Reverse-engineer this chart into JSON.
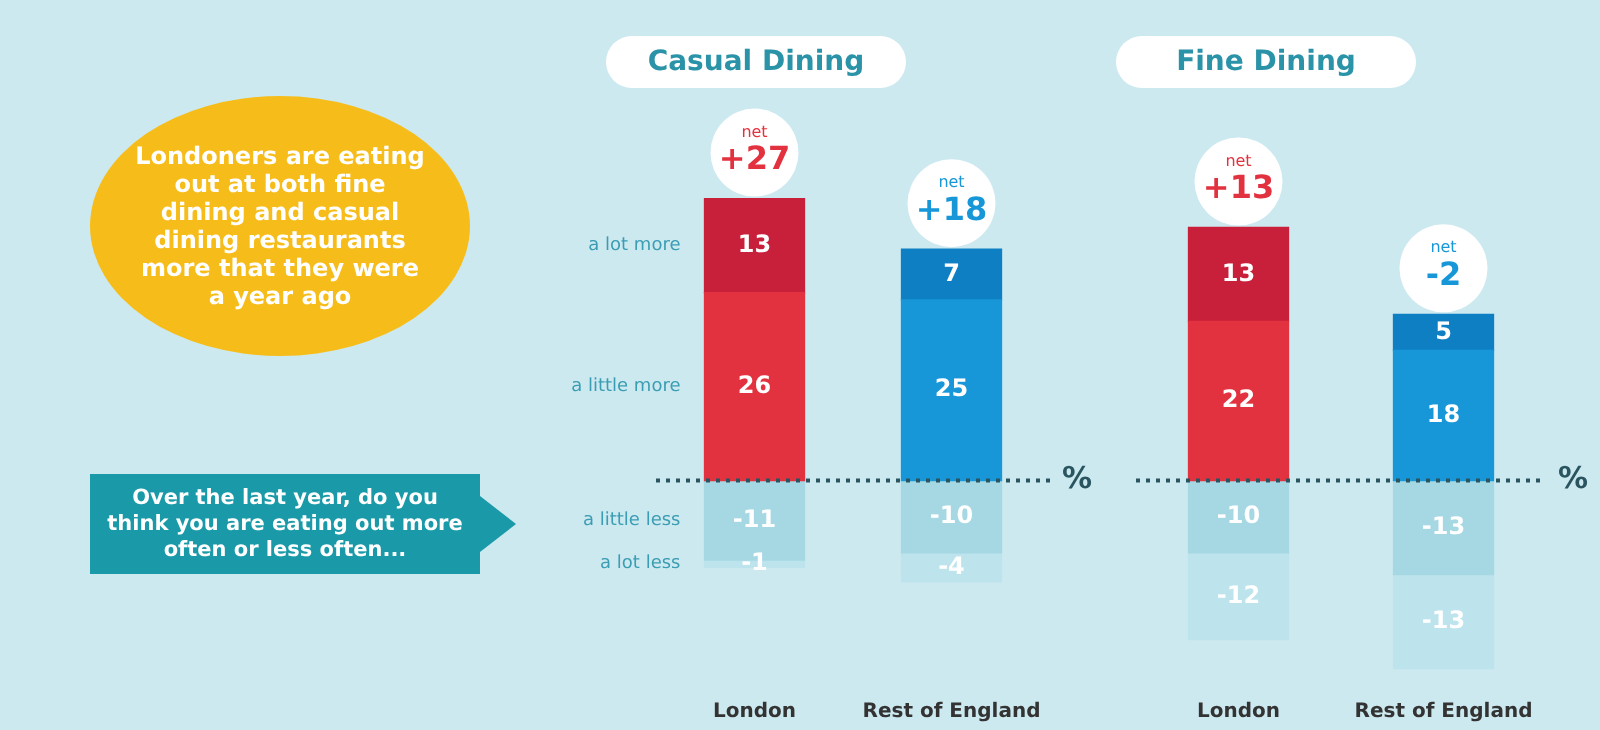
{
  "chart_data": [
    {
      "type": "bar",
      "title": "Casual Dining",
      "categories": [
        "London",
        "Rest of England"
      ],
      "stacked": true,
      "data_labels": true,
      "grid": false,
      "legend": false,
      "tick_labels": "x",
      "series": [
        {
          "name": "a little more",
          "colors": [
            "#e3323f",
            "#1797d8"
          ],
          "values": [
            26,
            25
          ]
        },
        {
          "name": "a lot more",
          "colors": [
            "#c8203a",
            "#0f7fc4"
          ],
          "values": [
            13,
            7
          ]
        },
        {
          "name": "a little less",
          "colors": [
            "#a6d8e4",
            "#a6d8e4"
          ],
          "values": [
            -11,
            -10
          ]
        },
        {
          "name": "a lot less",
          "colors": [
            "#bde3ec",
            "#bde3ec"
          ],
          "values": [
            -1,
            -4
          ]
        }
      ],
      "ref_lines": [
        {
          "axis": "y",
          "value": 0,
          "label": "%",
          "line_style": "dotted",
          "color": "#2a5560"
        }
      ],
      "annotations": [
        {
          "text": "net +27",
          "x": "London",
          "y": 39
        },
        {
          "text": "net +18",
          "x": "Rest of England",
          "y": 32
        },
        "Londoners are eating out at both fine dining and casual dining restaurants more that they were a year ago",
        "Over the last year, do you think you are eating out more often or less often..."
      ]
    },
    {
      "type": "bar",
      "title": "Fine Dining",
      "categories": [
        "London",
        "Rest of England"
      ],
      "stacked": true,
      "data_labels": true,
      "grid": false,
      "legend": false,
      "tick_labels": "x",
      "series": [
        {
          "colors": [
            "#e3323f",
            "#1797d8"
          ],
          "values": [
            22,
            18
          ]
        },
        {
          "colors": [
            "#c8203a",
            "#0f7fc4"
          ],
          "values": [
            13,
            5
          ]
        },
        {
          "colors": [
            "#a6d8e4",
            "#a6d8e4"
          ],
          "values": [
            -10,
            -13
          ]
        },
        {
          "colors": [
            "#bde3ec",
            "#bde3ec"
          ],
          "values": [
            -12,
            -13
          ]
        }
      ],
      "ref_lines": [
        {
          "axis": "y",
          "value": 0,
          "label": "%",
          "line_style": "dotted",
          "color": "#2a5560"
        }
      ],
      "annotations": [
        {
          "text": "net +13",
          "x": "London",
          "y": 35
        },
        {
          "text": "net -2",
          "x": "Rest of England",
          "y": 23
        }
      ]
    }
  ]
}
